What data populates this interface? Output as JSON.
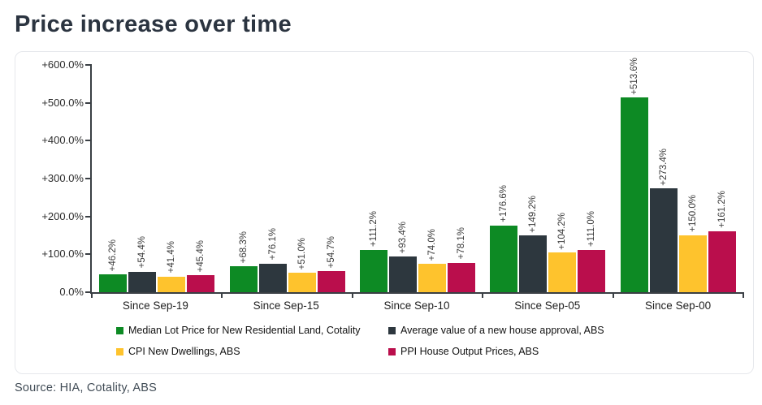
{
  "page": {
    "title": "Price increase over time",
    "source": "Source: HIA, Cotality, ABS"
  },
  "chart_data": {
    "type": "bar",
    "title": "Price increase over time",
    "categories": [
      "Since Sep-19",
      "Since Sep-15",
      "Since Sep-10",
      "Since Sep-05",
      "Since Sep-00"
    ],
    "series": [
      {
        "name": "Median Lot Price for New Residential Land, Cotality",
        "color": "#0d8a24",
        "values": [
          46.2,
          68.3,
          111.2,
          176.6,
          513.6
        ],
        "labels": [
          "+46.2%",
          "+68.3%",
          "+111.2%",
          "+176.6%",
          "+513.6%"
        ]
      },
      {
        "name": "Average value of a new house approval, ABS",
        "color": "#2d373e",
        "values": [
          54.4,
          76.1,
          93.4,
          149.2,
          273.4
        ],
        "labels": [
          "+54.4%",
          "+76.1%",
          "+93.4%",
          "+149.2%",
          "+273.4%"
        ]
      },
      {
        "name": "CPI New Dwellings, ABS",
        "color": "#fec32d",
        "values": [
          41.4,
          51.0,
          74.0,
          104.2,
          150.0
        ],
        "labels": [
          "+41.4%",
          "+51.0%",
          "+74.0%",
          "+104.2%",
          "+150.0%"
        ]
      },
      {
        "name": "PPI House Output Prices, ABS",
        "color": "#ba0e4c",
        "values": [
          45.4,
          54.7,
          78.1,
          111.0,
          161.2
        ],
        "labels": [
          "+45.4%",
          "+54.7%",
          "+78.1%",
          "+111.0%",
          "+161.2%"
        ]
      }
    ],
    "y_axis": {
      "min": 0,
      "max": 600,
      "tick_values": [
        600,
        500,
        400,
        300,
        200,
        100,
        0
      ],
      "tick_labels": [
        "+600.0%",
        "+500.0%",
        "+400.0%",
        "+300.0%",
        "+200.0%",
        "+100.0%",
        "0.0%"
      ]
    },
    "grid": false,
    "legend_position": "bottom"
  }
}
